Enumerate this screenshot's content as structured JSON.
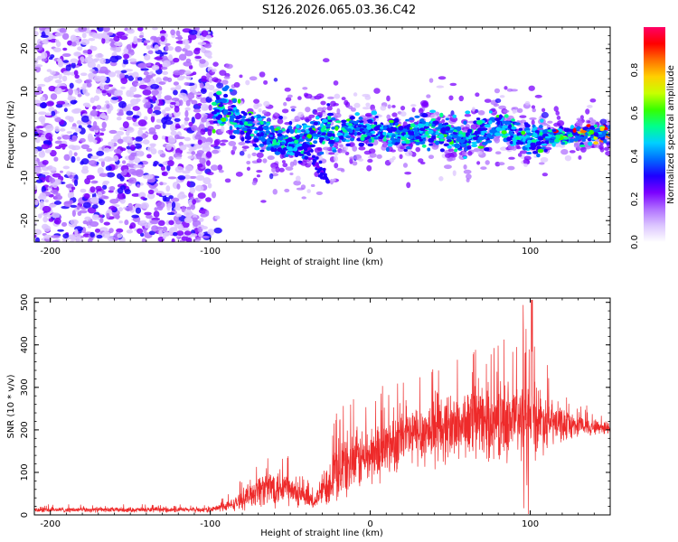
{
  "title": "S126.2026.065.03.36.C42",
  "chart_data": [
    {
      "type": "heatmap",
      "name": "spectrogram",
      "xlabel": "Height of straight line (km)",
      "ylabel": "Frequency (Hz)",
      "xlim": [
        -210,
        150
      ],
      "ylim": [
        -25,
        25
      ],
      "xticks": [
        -200,
        -100,
        0,
        100
      ],
      "yticks": [
        -20,
        -10,
        0,
        10,
        20
      ],
      "colorbar": {
        "label": "Normalized spectral amplitude",
        "range": [
          0,
          1
        ],
        "ticks": [
          0.0,
          0.2,
          0.4,
          0.6,
          0.8
        ],
        "tick_labels": [
          "0.0",
          "0.2",
          "0.4",
          "0.6",
          "0.8"
        ],
        "colors": [
          "#ffffff",
          "#dcc6ff",
          "#b070ff",
          "#7b00ff",
          "#1e00ff",
          "#006bff",
          "#00d0ff",
          "#00ff8c",
          "#36ff00",
          "#c8ff00",
          "#ffd000",
          "#ff7000",
          "#ff0000",
          "#ff0066"
        ]
      },
      "description_points": {
        "noise_region_x": [
          -210,
          -100
        ],
        "signal_center_freq_by_height": [
          {
            "x": -100,
            "f": 6
          },
          {
            "x": -90,
            "f": 5
          },
          {
            "x": -80,
            "f": 3
          },
          {
            "x": -70,
            "f": 1
          },
          {
            "x": -60,
            "f": -1
          },
          {
            "x": -50,
            "f": -2
          },
          {
            "x": -40,
            "f": -1
          },
          {
            "x": -30,
            "f": 1
          },
          {
            "x": -20,
            "f": 1
          },
          {
            "x": 0,
            "f": 1
          },
          {
            "x": 20,
            "f": 0
          },
          {
            "x": 40,
            "f": 1
          },
          {
            "x": 60,
            "f": -1
          },
          {
            "x": 80,
            "f": 2
          },
          {
            "x": 100,
            "f": -1
          },
          {
            "x": 120,
            "f": 0
          },
          {
            "x": 140,
            "f": 0
          },
          {
            "x": 150,
            "f": 0
          }
        ]
      }
    },
    {
      "type": "line",
      "name": "snr",
      "xlabel": "Height of straight line (km)",
      "ylabel": "SNR (10 * v/v)",
      "xlim": [
        -210,
        150
      ],
      "ylim": [
        0,
        510
      ],
      "xticks": [
        -200,
        -100,
        0,
        100
      ],
      "yticks": [
        0,
        100,
        200,
        300,
        400,
        500
      ],
      "color": "#ee2a2a",
      "envelope": [
        {
          "x": -210,
          "mean": 12,
          "spread": 6
        },
        {
          "x": -100,
          "mean": 12,
          "spread": 6
        },
        {
          "x": -85,
          "mean": 25,
          "spread": 15
        },
        {
          "x": -70,
          "mean": 60,
          "spread": 40
        },
        {
          "x": -55,
          "mean": 70,
          "spread": 50
        },
        {
          "x": -45,
          "mean": 45,
          "spread": 30
        },
        {
          "x": -35,
          "mean": 30,
          "spread": 15
        },
        {
          "x": -28,
          "mean": 70,
          "spread": 50
        },
        {
          "x": -20,
          "mean": 110,
          "spread": 80
        },
        {
          "x": 0,
          "mean": 140,
          "spread": 70
        },
        {
          "x": 20,
          "mean": 180,
          "spread": 70
        },
        {
          "x": 40,
          "mean": 200,
          "spread": 80
        },
        {
          "x": 60,
          "mean": 215,
          "spread": 80
        },
        {
          "x": 80,
          "mean": 220,
          "spread": 90
        },
        {
          "x": 100,
          "mean": 230,
          "spread": 100
        },
        {
          "x": 115,
          "mean": 215,
          "spread": 50
        },
        {
          "x": 130,
          "mean": 210,
          "spread": 25
        },
        {
          "x": 150,
          "mean": 205,
          "spread": 15
        }
      ],
      "peak": {
        "x": 101,
        "y": 505
      }
    }
  ]
}
